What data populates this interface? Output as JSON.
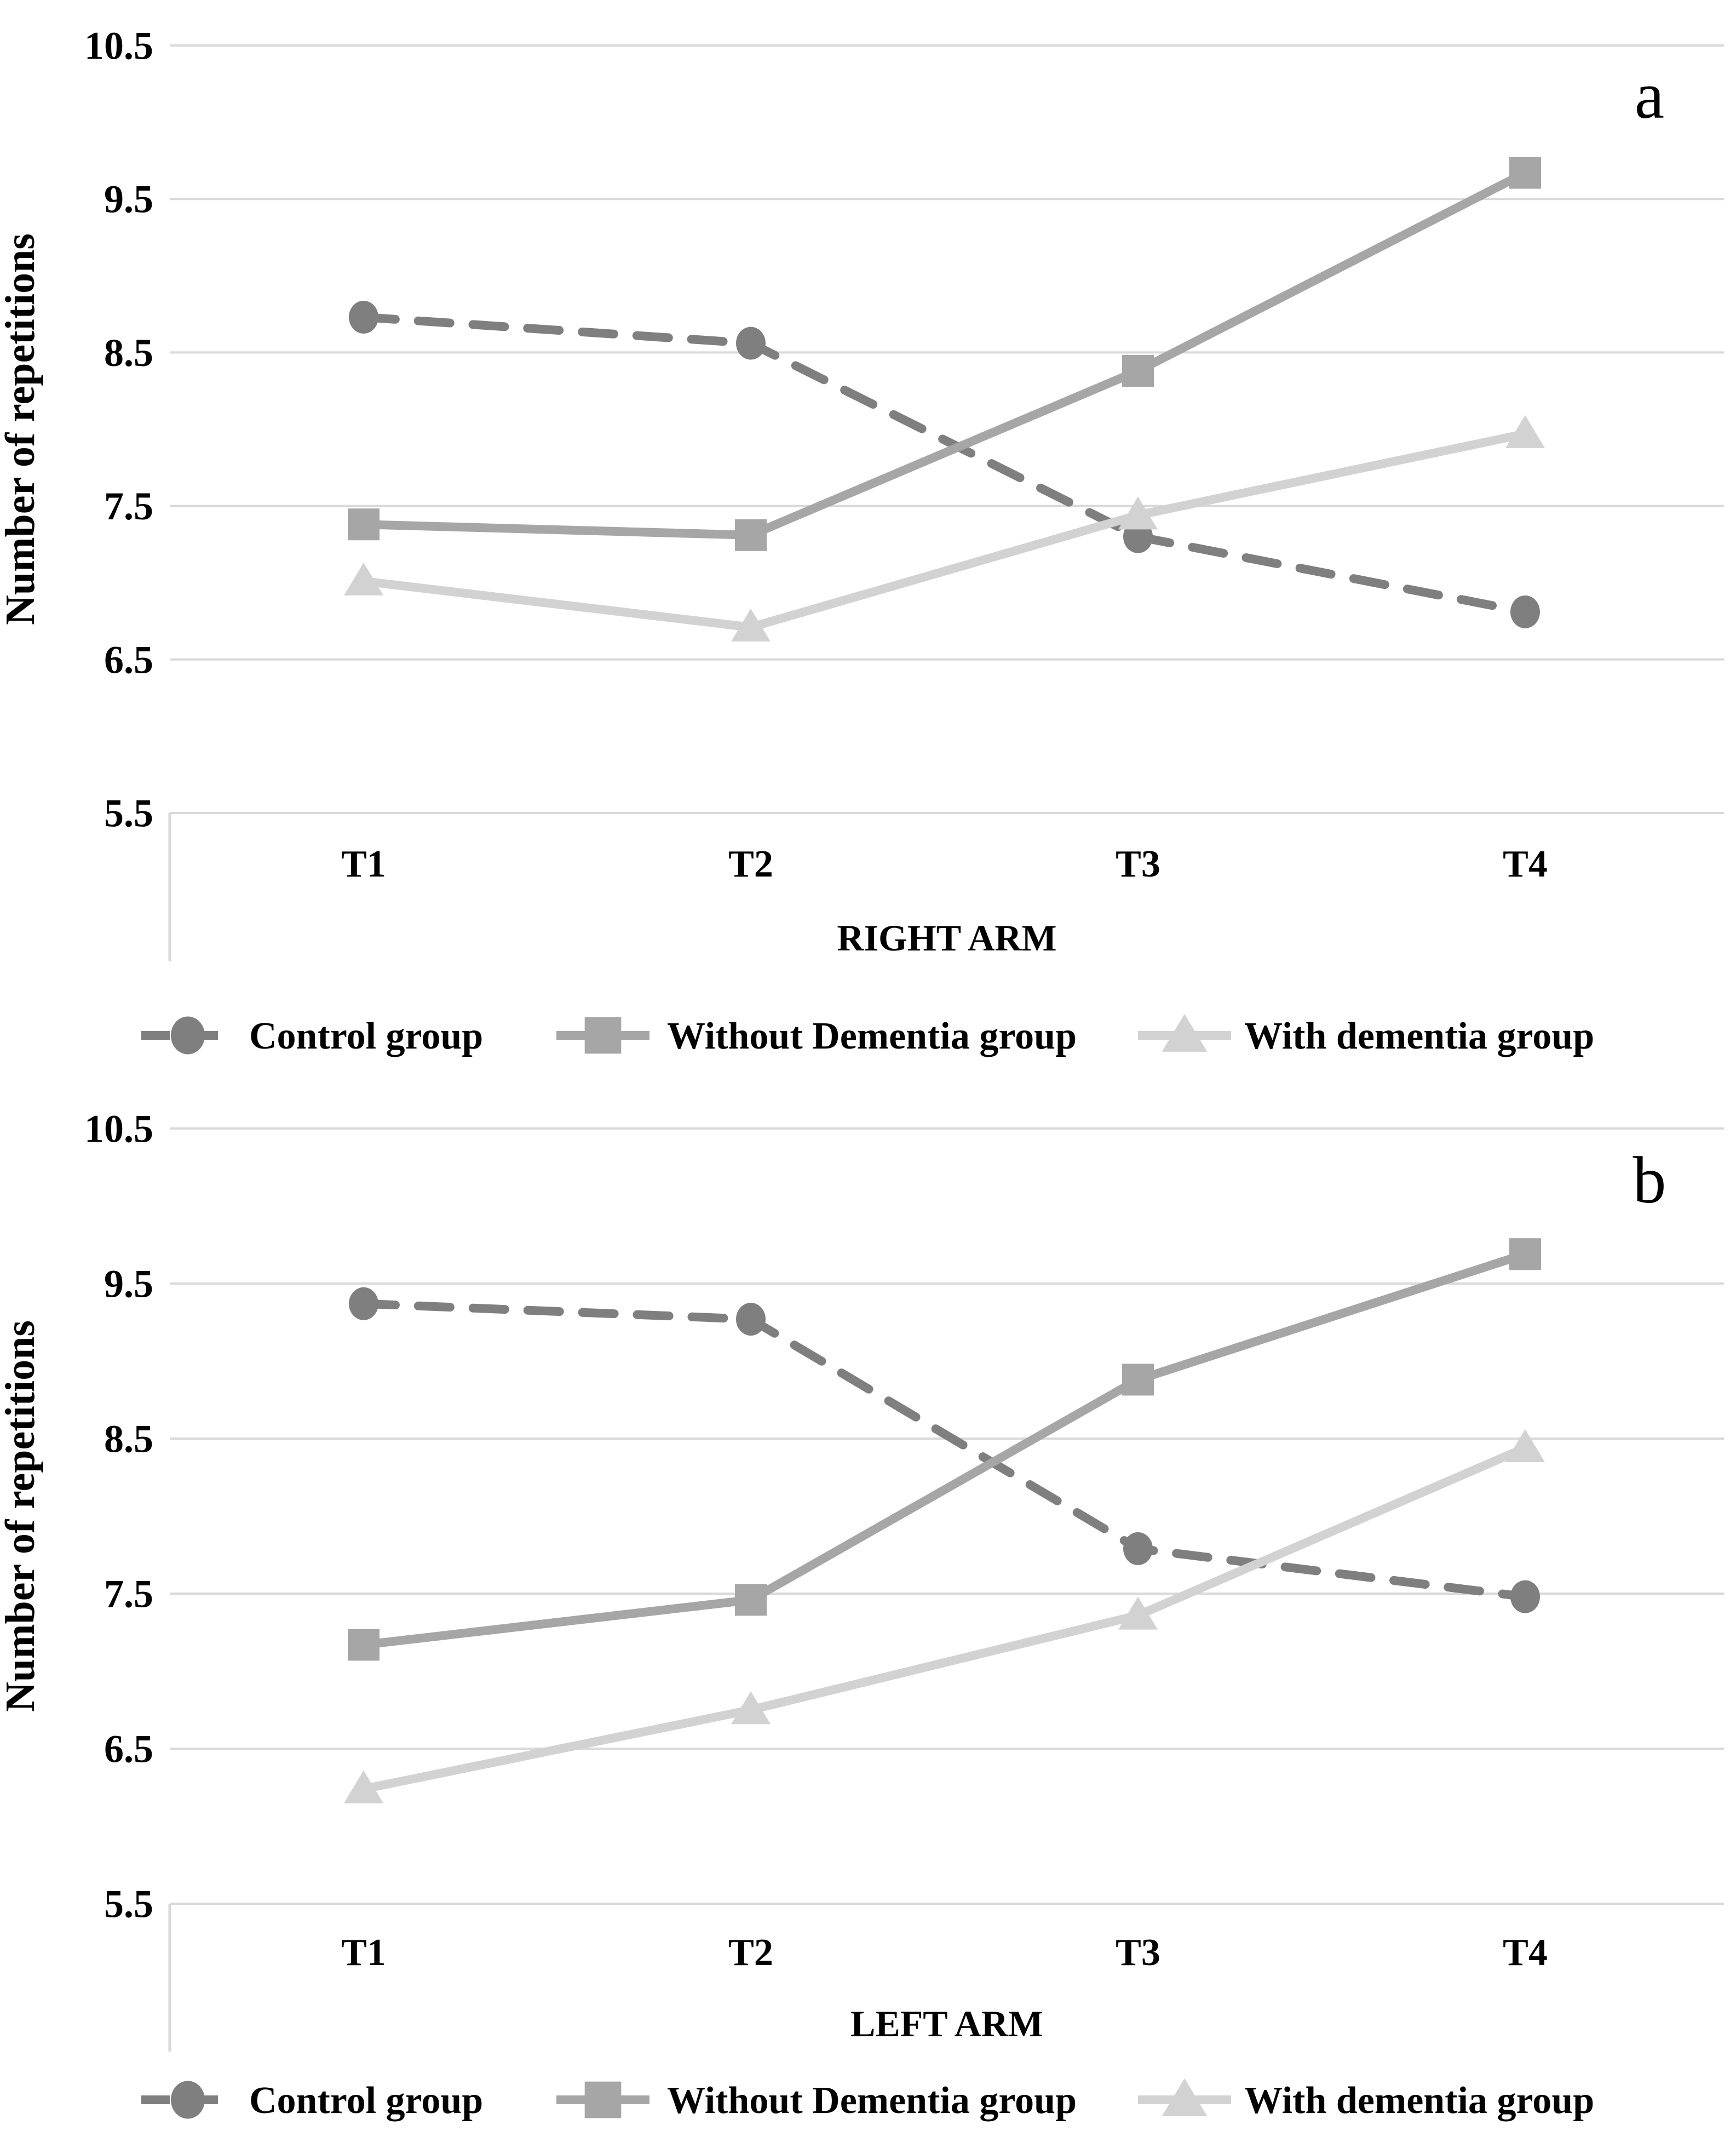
{
  "figure": {
    "background": "#ffffff",
    "panel_labels": [
      "a",
      "b"
    ]
  },
  "colors": {
    "control_group": "#7f7f7f",
    "without_dementia_group": "#a6a6a6",
    "with_dementia_group": "#d2d2d2",
    "gridline": "#d9d9d9",
    "axis_border": "#d9d9d9",
    "text": "#000000"
  },
  "chart_data": [
    {
      "type": "line",
      "panel_label": "a",
      "xlabel": "RIGHT ARM",
      "ylabel": "Number of repetitions",
      "categories": [
        "T1",
        "T2",
        "T3",
        "T4"
      ],
      "ylim": [
        5.5,
        10.5
      ],
      "yticks": [
        10.5,
        9.5,
        8.5,
        7.5,
        6.5,
        5.5
      ],
      "grid": true,
      "legend_position": "bottom",
      "series": [
        {
          "name": "Control group",
          "values": [
            8.73,
            8.56,
            7.3,
            6.81
          ],
          "color": "#7f7f7f",
          "dashed": true,
          "marker": "circle"
        },
        {
          "name": "Without Dementia group",
          "values": [
            7.38,
            7.31,
            8.38,
            9.67
          ],
          "color": "#a6a6a6",
          "dashed": false,
          "marker": "square"
        },
        {
          "name": "With dementia group",
          "values": [
            7.01,
            6.71,
            7.44,
            7.97
          ],
          "color": "#d2d2d2",
          "dashed": false,
          "marker": "triangle"
        }
      ]
    },
    {
      "type": "line",
      "panel_label": "b",
      "xlabel": "LEFT ARM",
      "ylabel": "Number of repetitions",
      "categories": [
        "T1",
        "T2",
        "T3",
        "T4"
      ],
      "ylim": [
        5.5,
        10.5
      ],
      "yticks": [
        10.5,
        9.5,
        8.5,
        7.5,
        6.5,
        5.5
      ],
      "grid": true,
      "legend_position": "bottom",
      "series": [
        {
          "name": "Control group",
          "values": [
            9.37,
            9.27,
            7.79,
            7.48
          ],
          "color": "#7f7f7f",
          "dashed": true,
          "marker": "circle"
        },
        {
          "name": "Without Dementia group",
          "values": [
            7.17,
            7.46,
            8.88,
            9.69
          ],
          "color": "#a6a6a6",
          "dashed": false,
          "marker": "square"
        },
        {
          "name": "With dementia group",
          "values": [
            6.24,
            6.75,
            7.36,
            8.44
          ],
          "color": "#d2d2d2",
          "dashed": false,
          "marker": "triangle"
        }
      ]
    }
  ]
}
